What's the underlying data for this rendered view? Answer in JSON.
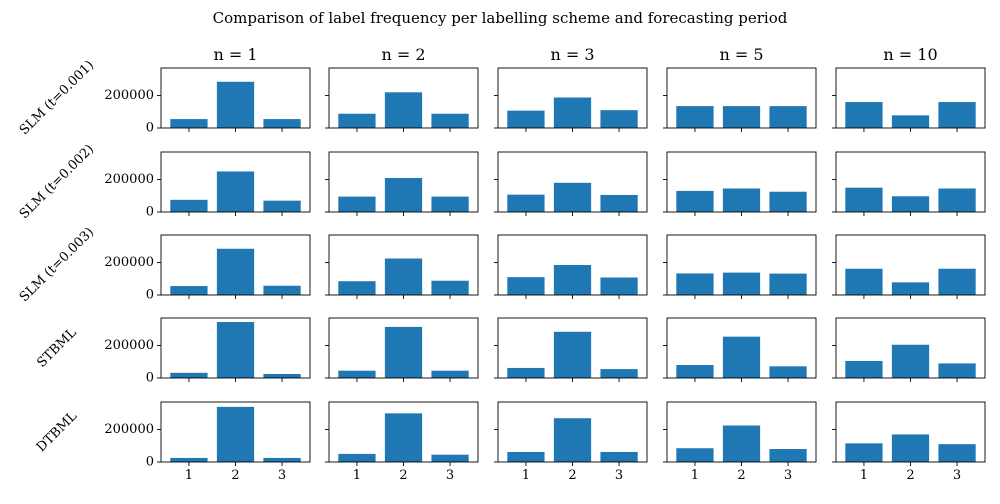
{
  "chart_data": {
    "type": "bar",
    "title": "Comparison of label frequency per labelling scheme and forecasting period",
    "columns": [
      "n = 1",
      "n = 2",
      "n = 3",
      "n = 5",
      "n = 10"
    ],
    "rows": [
      "SLM (t=0.001)",
      "SLM (t=0.002)",
      "SLM (t=0.003)",
      "STBML",
      "DTBML"
    ],
    "categories": [
      "1",
      "2",
      "3"
    ],
    "y_ticks": [
      {
        "value": 0,
        "label": "0"
      },
      {
        "value": 200000,
        "label": "200000"
      }
    ],
    "ylim": [
      0,
      370000
    ],
    "shared_y": true,
    "grid": false,
    "bar_color": "#1f77b4",
    "values": [
      [
        [
          55000,
          285000,
          55000
        ],
        [
          88000,
          220000,
          88000
        ],
        [
          107000,
          188000,
          110000
        ],
        [
          135000,
          135000,
          135000
        ],
        [
          160000,
          78000,
          160000
        ]
      ],
      [
        [
          75000,
          250000,
          70000
        ],
        [
          95000,
          210000,
          95000
        ],
        [
          107000,
          180000,
          105000
        ],
        [
          130000,
          145000,
          125000
        ],
        [
          150000,
          97000,
          145000
        ]
      ],
      [
        [
          55000,
          285000,
          57000
        ],
        [
          85000,
          225000,
          88000
        ],
        [
          110000,
          185000,
          108000
        ],
        [
          133000,
          138000,
          132000
        ],
        [
          162000,
          78000,
          162000
        ]
      ],
      [
        [
          32000,
          345000,
          25000
        ],
        [
          45000,
          315000,
          45000
        ],
        [
          62000,
          285000,
          55000
        ],
        [
          80000,
          255000,
          72000
        ],
        [
          105000,
          205000,
          90000
        ]
      ],
      [
        [
          25000,
          340000,
          25000
        ],
        [
          50000,
          300000,
          45000
        ],
        [
          62000,
          270000,
          62000
        ],
        [
          85000,
          225000,
          80000
        ],
        [
          115000,
          170000,
          110000
        ]
      ]
    ]
  }
}
